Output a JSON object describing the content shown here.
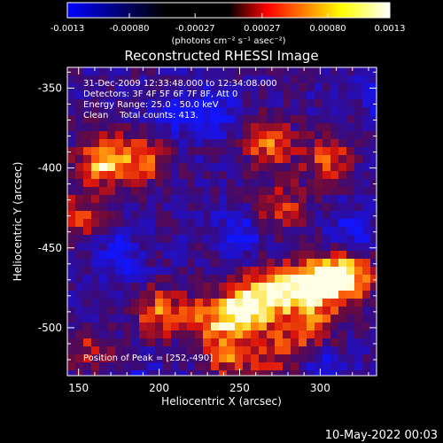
{
  "colorbar": {
    "tick_labels": [
      "-0.0013",
      "-0.00080",
      "-0.00027",
      "0.00027",
      "0.00080",
      "0.0013"
    ],
    "tick_values": [
      -0.0013,
      -0.0008,
      -0.00027,
      0.00027,
      0.0008,
      0.0013
    ],
    "range": [
      -0.0013,
      0.0013
    ],
    "units_label": "(photons cm⁻² s⁻¹ asec⁻²)",
    "colors": [
      "#0000ff",
      "#000000",
      "#ff0000",
      "#ffff00",
      "#ffffff"
    ]
  },
  "chart_data": {
    "type": "heatmap",
    "title": "Reconstructed RHESSI Image",
    "xlabel": "Heliocentric X (arcsec)",
    "ylabel": "Heliocentric Y (arcsec)",
    "xlim": [
      143,
      335
    ],
    "ylim": [
      -530,
      -337
    ],
    "x_ticks": [
      150,
      200,
      250,
      300
    ],
    "y_ticks": [
      -350,
      -400,
      -450,
      -500
    ],
    "annotation_lines": [
      "31-Dec-2009 12:33:48.000 to 12:34:08.000",
      "Detectors: 3F 4F 5F 6F 7F 8F, Att 0",
      "Energy Range: 25.0 - 50.0 keV",
      "Clean    Total counts: 413."
    ],
    "peak_label": "Position of Peak = [252,-490]",
    "peak_position": [
      252,
      -490
    ],
    "bright_sources": [
      {
        "x": 252,
        "y": -490,
        "intensity": 1.0
      },
      {
        "x": 270,
        "y": -478,
        "intensity": 0.75
      },
      {
        "x": 290,
        "y": -475,
        "intensity": 0.7
      },
      {
        "x": 305,
        "y": -470,
        "intensity": 0.75
      },
      {
        "x": 320,
        "y": -468,
        "intensity": 0.65
      },
      {
        "x": 200,
        "y": -490,
        "intensity": 0.6
      },
      {
        "x": 230,
        "y": -495,
        "intensity": 0.55
      },
      {
        "x": 245,
        "y": -520,
        "intensity": 0.55
      },
      {
        "x": 275,
        "y": -515,
        "intensity": 0.45
      },
      {
        "x": 295,
        "y": -500,
        "intensity": 0.5
      },
      {
        "x": 165,
        "y": -395,
        "intensity": 0.8
      },
      {
        "x": 190,
        "y": -395,
        "intensity": 0.55
      },
      {
        "x": 150,
        "y": -430,
        "intensity": 0.45
      },
      {
        "x": 268,
        "y": -385,
        "intensity": 0.6
      },
      {
        "x": 275,
        "y": -425,
        "intensity": 0.5
      },
      {
        "x": 305,
        "y": -395,
        "intensity": 0.55
      },
      {
        "x": 155,
        "y": -515,
        "intensity": 0.4
      }
    ]
  },
  "footer": {
    "date": "10-May-2022 00:03"
  }
}
